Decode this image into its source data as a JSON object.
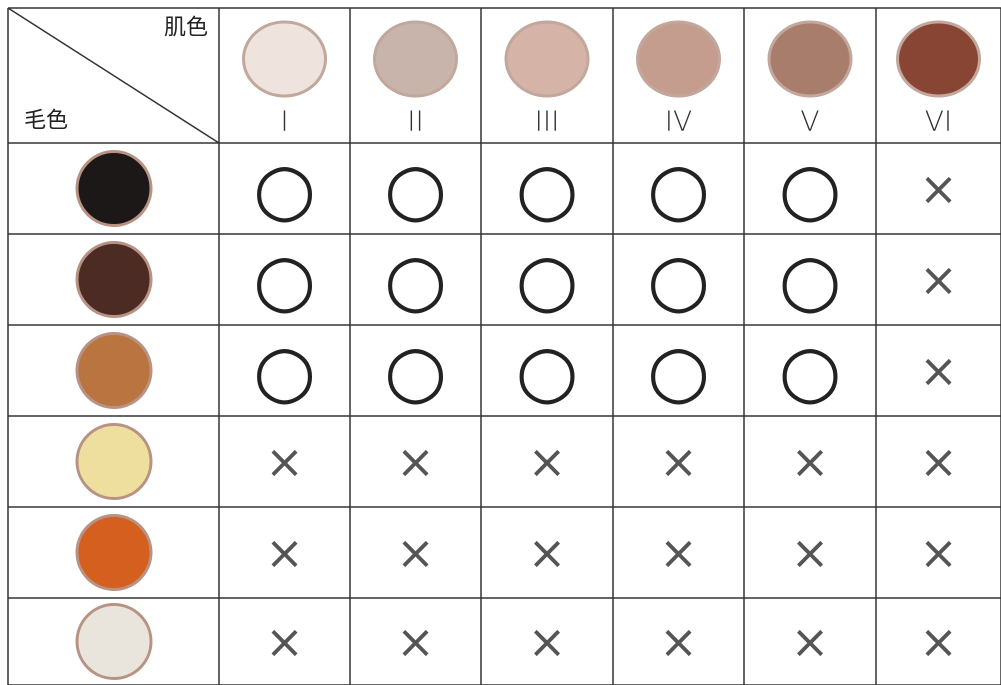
{
  "header": {
    "skin_label": "肌色",
    "hair_label": "毛色",
    "skin_types": [
      {
        "label": "I",
        "color": "#efe3dd"
      },
      {
        "label": "II",
        "color": "#c9b4ac"
      },
      {
        "label": "III",
        "color": "#d5b4a7"
      },
      {
        "label": "IV",
        "color": "#c49d8f"
      },
      {
        "label": "V",
        "color": "#a97d6c"
      },
      {
        "label": "VI",
        "color": "#894533"
      }
    ]
  },
  "hair_colors": [
    "#1b1817",
    "#4b2b24",
    "#b9743f",
    "#efdf9e",
    "#d45f1e",
    "#e9e5dd"
  ],
  "table": {
    "rows": [
      [
        "○",
        "○",
        "○",
        "○",
        "○",
        "×"
      ],
      [
        "○",
        "○",
        "○",
        "○",
        "○",
        "×"
      ],
      [
        "○",
        "○",
        "○",
        "○",
        "○",
        "×"
      ],
      [
        "×",
        "×",
        "×",
        "×",
        "×",
        "×"
      ],
      [
        "×",
        "×",
        "×",
        "×",
        "×",
        "×"
      ],
      [
        "×",
        "×",
        "×",
        "×",
        "×",
        "×"
      ]
    ]
  }
}
